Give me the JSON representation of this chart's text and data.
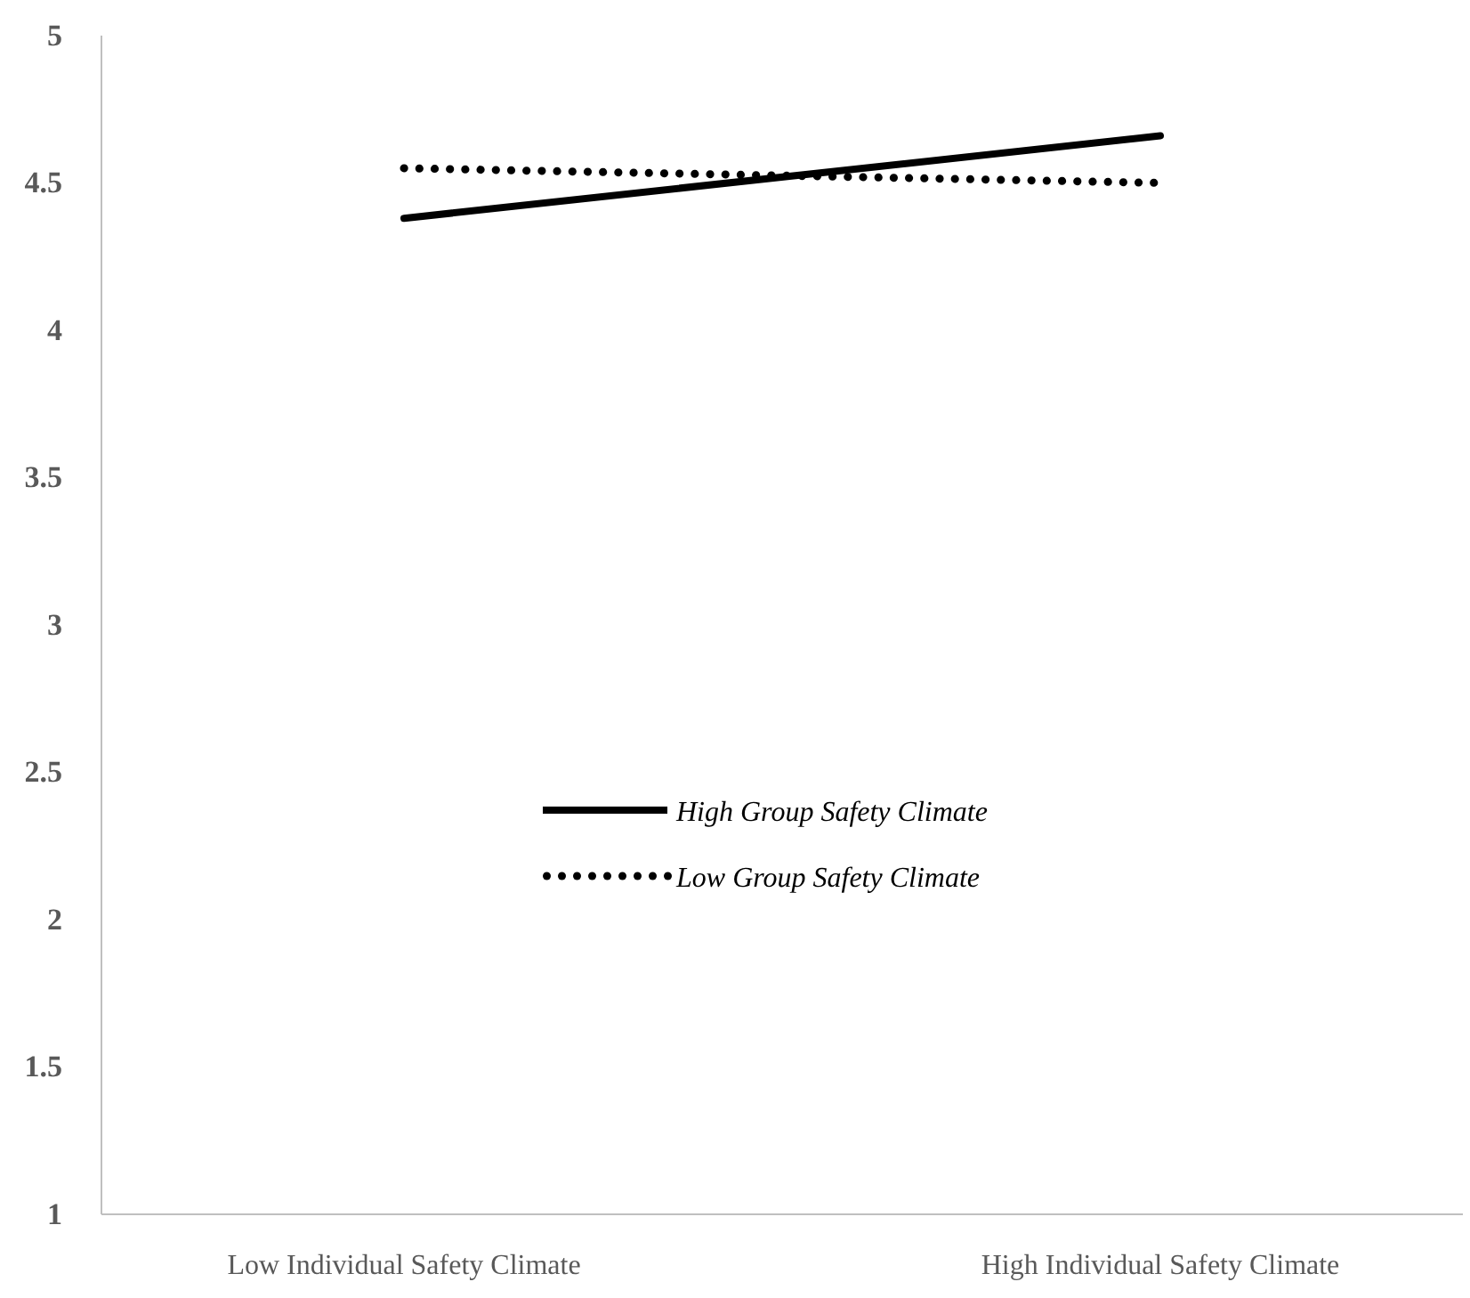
{
  "chart_data": {
    "type": "line",
    "categories": [
      "Low Individual Safety Climate",
      "High Individual Safety Climate"
    ],
    "series": [
      {
        "name": "High Group Safety Climate",
        "color": "#000000",
        "values": [
          4.38,
          4.66
        ],
        "line_style": "solid"
      },
      {
        "name": "Low Group Safety Climate",
        "color": "#000000",
        "values": [
          4.55,
          4.5
        ],
        "line_style": "dotted"
      }
    ],
    "ylim": [
      1,
      5
    ],
    "yticks": [
      1,
      1.5,
      2,
      2.5,
      3,
      3.5,
      4,
      4.5,
      5
    ],
    "grid": false,
    "legend": "center",
    "marker": "none"
  }
}
